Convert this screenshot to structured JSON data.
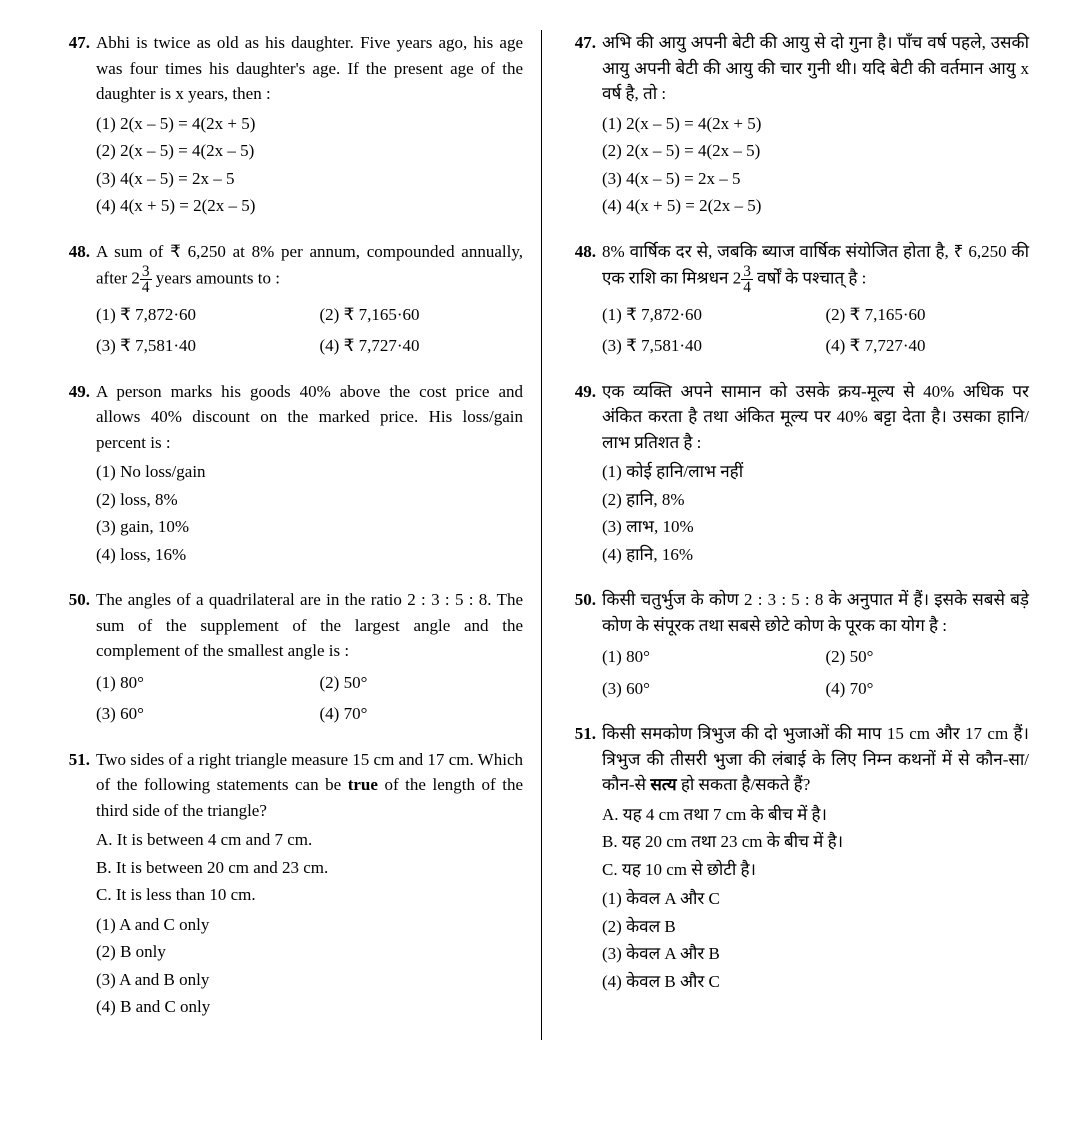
{
  "left": {
    "q47": {
      "num": "47.",
      "text": "Abhi is twice as old as his daughter. Five years ago, his age was four times his daughter's age. If the present age of the daughter is x years, then :",
      "o1": "(1)  2(x – 5) = 4(2x + 5)",
      "o2": "(2)  2(x – 5) = 4(2x – 5)",
      "o3": "(3)  4(x – 5) = 2x – 5",
      "o4": "(4)  4(x + 5) = 2(2x – 5)"
    },
    "q48": {
      "num": "48.",
      "text_a": "A sum of ₹ 6,250 at 8% per annum, compounded annually, after 2",
      "frac_n": "3",
      "frac_d": "4",
      "text_b": " years amounts to :",
      "o1": "(1)  ₹ 7,872·60",
      "o2": "(2)  ₹ 7,165·60",
      "o3": "(3)  ₹ 7,581·40",
      "o4": "(4)  ₹ 7,727·40"
    },
    "q49": {
      "num": "49.",
      "text": "A person marks his goods 40% above the cost price and allows 40% discount on the marked price. His loss/gain percent is :",
      "o1": "(1)  No loss/gain",
      "o2": "(2)  loss, 8%",
      "o3": "(3)  gain, 10%",
      "o4": "(4)  loss, 16%"
    },
    "q50": {
      "num": "50.",
      "text": "The angles of a quadrilateral are in the ratio 2 : 3 : 5 : 8. The sum of the supplement of the largest angle and the complement of the smallest angle is :",
      "o1": "(1)  80°",
      "o2": "(2)  50°",
      "o3": "(3)  60°",
      "o4": "(4)  70°"
    },
    "q51": {
      "num": "51.",
      "text_a": "Two sides of a right triangle measure 15 cm and 17 cm. Which of the following statements can be ",
      "bold": "true",
      "text_b": " of the length of the third side of the triangle?",
      "sA": "A.  It is between 4 cm and 7 cm.",
      "sB": "B.  It is between 20 cm and 23 cm.",
      "sC": "C.  It is less than 10 cm.",
      "o1": "(1)  A and C only",
      "o2": "(2)  B only",
      "o3": "(3)  A and B only",
      "o4": "(4)  B and C only"
    }
  },
  "right": {
    "q47": {
      "num": "47.",
      "text": "अभि की आयु अपनी बेटी की आयु से दो गुना है। पाँच वर्ष पहले, उसकी आयु अपनी बेटी की आयु की चार गुनी थी। यदि बेटी की वर्तमान आयु x वर्ष है, तो :",
      "o1": "(1)  2(x – 5) = 4(2x + 5)",
      "o2": "(2)  2(x – 5) = 4(2x – 5)",
      "o3": "(3)  4(x – 5) = 2x – 5",
      "o4": "(4)  4(x + 5) = 2(2x – 5)"
    },
    "q48": {
      "num": "48.",
      "text_a": "8% वार्षिक दर से, जबकि ब्याज वार्षिक संयोजित होता है, ₹ 6,250 की एक राशि का मिश्रधन 2",
      "frac_n": "3",
      "frac_d": "4",
      "text_b": " वर्षों के पश्चात् है :",
      "o1": "(1)  ₹ 7,872·60",
      "o2": "(2)  ₹ 7,165·60",
      "o3": "(3)  ₹ 7,581·40",
      "o4": "(4)  ₹ 7,727·40"
    },
    "q49": {
      "num": "49.",
      "text": "एक व्यक्ति अपने सामान को उसके क्रय-मूल्य से 40% अधिक पर अंकित करता है तथा अंकित मूल्य पर 40% बट्टा देता है। उसका हानि/लाभ प्रतिशत है :",
      "o1": "(1)  कोई हानि/लाभ नहीं",
      "o2": "(2)  हानि, 8%",
      "o3": "(3)  लाभ, 10%",
      "o4": "(4)  हानि, 16%"
    },
    "q50": {
      "num": "50.",
      "text": "किसी चतुर्भुज के कोण 2 : 3 : 5 : 8 के अनुपात में हैं। इसके सबसे बड़े कोण के संपूरक तथा सबसे छोटे कोण के पूरक का योग है :",
      "o1": "(1)  80°",
      "o2": "(2)  50°",
      "o3": "(3)  60°",
      "o4": "(4)  70°"
    },
    "q51": {
      "num": "51.",
      "text_a": "किसी समकोण त्रिभुज की दो भुजाओं की माप 15 cm और 17 cm हैं। त्रिभुज की तीसरी भुजा की लंबाई के लिए निम्न कथनों में से कौन-सा/कौन-से ",
      "bold": "सत्य",
      "text_b": " हो सकता है/सकते हैं?",
      "sA": "A.  यह 4 cm  तथा 7 cm  के बीच में है।",
      "sB": "B.  यह 20 cm  तथा 23 cm  के बीच में है।",
      "sC": "C.  यह 10 cm  से छोटी है।",
      "o1": "(1)  केवल A और C",
      "o2": "(2)  केवल B",
      "o3": "(3)  केवल A और B",
      "o4": "(4)  केवल B और C"
    }
  }
}
